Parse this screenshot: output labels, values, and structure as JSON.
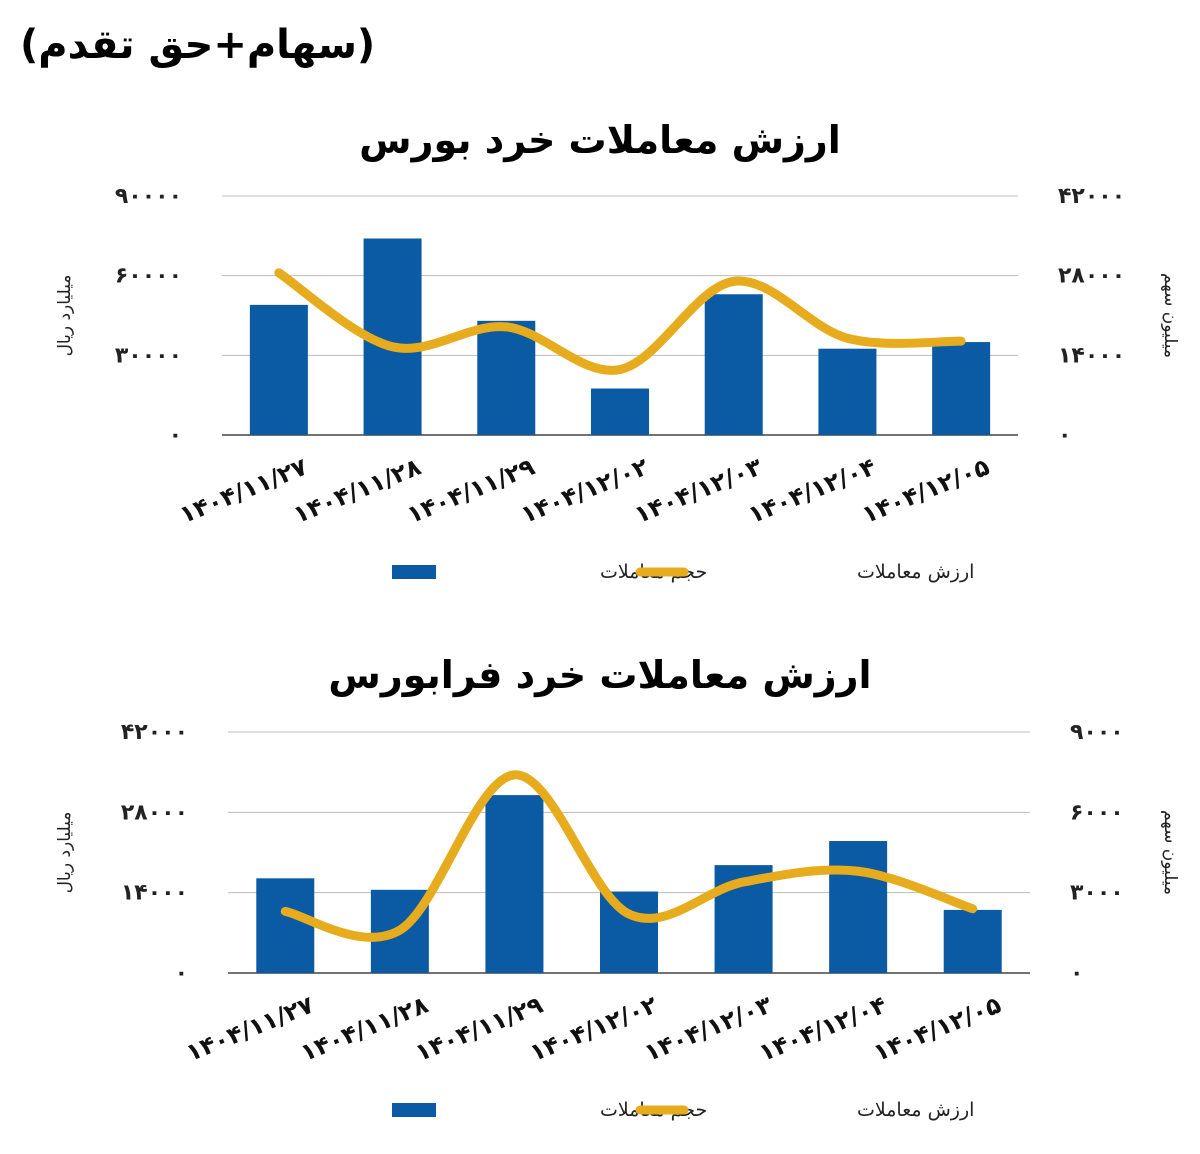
{
  "header": {
    "title": "(سهام+حق تقدم)"
  },
  "chart_data": [
    {
      "type": "bar",
      "title": "ارزش معاملات خرد بورس",
      "categories": [
        "۱۴۰۴/۱۱/۲۷",
        "۱۴۰۴/۱۱/۲۸",
        "۱۴۰۴/۱۱/۲۹",
        "۱۴۰۴/۱۲/۰۲",
        "۱۴۰۴/۱۲/۰۳",
        "۱۴۰۴/۱۲/۰۴",
        "۱۴۰۴/۱۲/۰۵"
      ],
      "series": [
        {
          "name": "حجم معاملات",
          "type": "bar",
          "axis": "left",
          "color": "#0B5BA4",
          "values": [
            49000,
            74000,
            43000,
            17500,
            53000,
            32500,
            35000
          ]
        },
        {
          "name": "ارزش معاملات",
          "type": "line",
          "axis": "right",
          "color": "#E6AC1E",
          "values": [
            28500,
            15500,
            19000,
            11500,
            27000,
            17000,
            16500
          ]
        }
      ],
      "ylabel": "میلیارد ریال",
      "ylabel_right": "میلیون سهم",
      "ylim": [
        0,
        90000
      ],
      "yticks": [
        "۰",
        "۳۰۰۰۰",
        "۶۰۰۰۰",
        "۹۰۰۰۰"
      ],
      "ylim_right": [
        0,
        42000
      ],
      "yticks_right": [
        "۰",
        "۱۴۰۰۰",
        "۲۸۰۰۰",
        "۴۲۰۰۰"
      ],
      "grid": true,
      "legend": "bottom-center"
    },
    {
      "type": "bar",
      "title": "ارزش معاملات خرد فرابورس",
      "categories": [
        "۱۴۰۴/۱۱/۲۷",
        "۱۴۰۴/۱۱/۲۸",
        "۱۴۰۴/۱۱/۲۹",
        "۱۴۰۴/۱۲/۰۲",
        "۱۴۰۴/۱۲/۰۳",
        "۱۴۰۴/۱۲/۰۴",
        "۱۴۰۴/۱۲/۰۵"
      ],
      "series": [
        {
          "name": "حجم معاملات",
          "type": "bar",
          "axis": "left",
          "color": "#0B5BA4",
          "values": [
            16500,
            14500,
            31000,
            14200,
            18800,
            23000,
            11000
          ]
        },
        {
          "name": "ارزش معاملات",
          "type": "line",
          "axis": "right",
          "color": "#E6AC1E",
          "values": [
            2300,
            1600,
            7400,
            2200,
            3400,
            3800,
            2400
          ]
        }
      ],
      "ylabel": "میلیارد ریال",
      "ylabel_right": "میلیون سهم",
      "ylim": [
        0,
        42000
      ],
      "yticks": [
        "۰",
        "۱۴۰۰۰",
        "۲۸۰۰۰",
        "۴۲۰۰۰"
      ],
      "ylim_right": [
        0,
        9000
      ],
      "yticks_right": [
        "۰",
        "۳۰۰۰",
        "۶۰۰۰",
        "۹۰۰۰"
      ],
      "grid": true,
      "legend": "bottom-center"
    }
  ]
}
